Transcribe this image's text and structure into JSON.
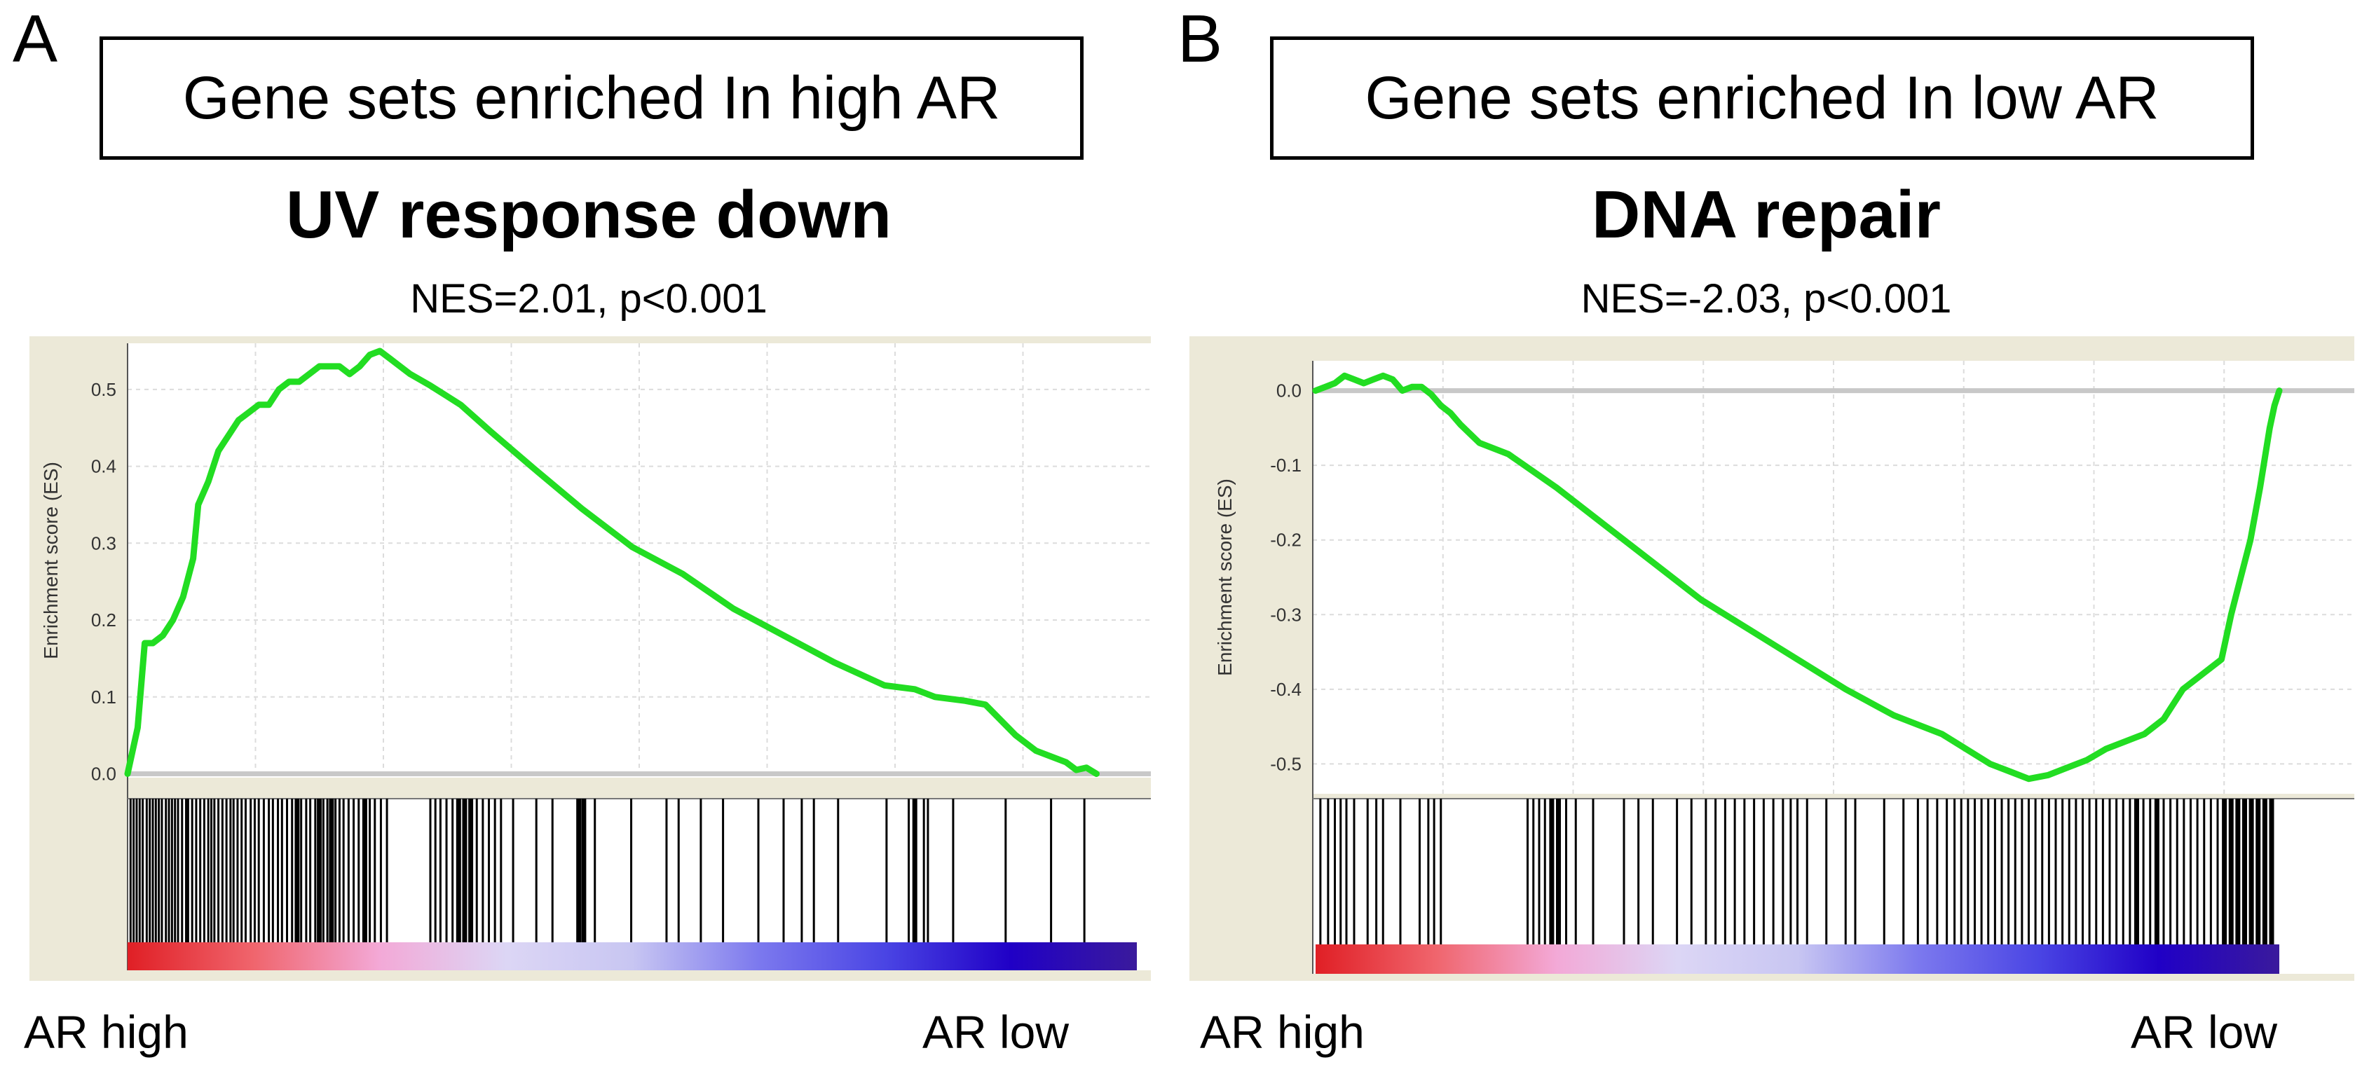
{
  "panels": [
    {
      "letter": "A",
      "caption": "Gene sets enriched In high AR",
      "x_left_label": "AR high",
      "x_right_label": "AR low"
    },
    {
      "letter": "B",
      "caption": "Gene sets enriched In low AR",
      "x_left_label": "AR high",
      "x_right_label": "AR low"
    }
  ],
  "chart_data": [
    {
      "type": "line",
      "title": "UV response  down",
      "subtitle": "NES=2.01,  p<0.001",
      "xlabel": "",
      "ylabel": "Enrichment score (ES)",
      "ylim": [
        -0.005,
        0.56
      ],
      "yticks": [
        0.0,
        0.1,
        0.2,
        0.3,
        0.4,
        0.5
      ],
      "ytick_labels": [
        "0.0",
        "0.1",
        "0.2",
        "0.3",
        "0.4",
        "0.5"
      ],
      "xlim": [
        0,
        100
      ],
      "x": [
        0,
        1,
        1.7,
        2.5,
        3.5,
        4.5,
        5.5,
        6.5,
        7,
        8,
        9,
        10,
        11,
        12,
        13,
        14,
        15,
        16,
        17,
        18,
        19,
        20,
        21,
        22,
        23,
        24,
        25,
        26,
        27,
        28,
        30,
        33,
        36,
        40,
        45,
        50,
        55,
        60,
        65,
        70,
        75,
        78,
        80,
        83,
        85,
        88,
        90,
        92,
        93,
        94,
        95,
        96
      ],
      "y": [
        0.0,
        0.06,
        0.17,
        0.17,
        0.18,
        0.2,
        0.23,
        0.28,
        0.35,
        0.38,
        0.42,
        0.44,
        0.46,
        0.47,
        0.48,
        0.48,
        0.5,
        0.51,
        0.51,
        0.52,
        0.53,
        0.53,
        0.53,
        0.52,
        0.53,
        0.545,
        0.55,
        0.54,
        0.53,
        0.52,
        0.505,
        0.48,
        0.445,
        0.4,
        0.345,
        0.295,
        0.26,
        0.215,
        0.18,
        0.145,
        0.115,
        0.11,
        0.1,
        0.095,
        0.09,
        0.05,
        0.03,
        0.02,
        0.015,
        0.005,
        0.008,
        0.0
      ],
      "hits": [
        0.3,
        0.6,
        0.9,
        1.2,
        1.5,
        1.9,
        2.2,
        2.5,
        2.8,
        3.1,
        3.4,
        3.8,
        4.1,
        4.4,
        4.7,
        5.0,
        5.4,
        5.8,
        6.0,
        6.4,
        6.8,
        7.2,
        7.6,
        8.0,
        8.3,
        8.6,
        9.0,
        9.4,
        9.8,
        10.2,
        10.5,
        10.9,
        11.3,
        11.7,
        12.2,
        12.6,
        13.0,
        13.5,
        14.0,
        14.4,
        14.9,
        15.3,
        15.8,
        16.3,
        16.8,
        17.2,
        17.7,
        18.1,
        18.6,
        19.0,
        19.4,
        19.8,
        20.2,
        20.6,
        21.0,
        21.4,
        21.9,
        22.4,
        22.9,
        23.5,
        24.0,
        24.5,
        25.1,
        25.7,
        30.0,
        30.5,
        31.0,
        31.6,
        32.2,
        32.8,
        33.4,
        34.0,
        34.6,
        35.2,
        35.8,
        36.4,
        37.0,
        38.2,
        40.5,
        42.1,
        44.7,
        45.2,
        46.3,
        49.9,
        53.4,
        54.6,
        56.8,
        59.0,
        62.5,
        65.0,
        66.8,
        68.0,
        70.4,
        75.2,
        77.4,
        78.0,
        78.9,
        79.3,
        81.8,
        87.0,
        91.5,
        94.8
      ],
      "hits_bold": [
        16.8,
        19.0,
        20.2,
        23.5,
        32.8,
        33.4,
        34.0,
        44.7,
        45.2,
        78.0
      ]
    },
    {
      "type": "line",
      "title": "DNA repair",
      "subtitle": "NES=-2.03,  p<0.001",
      "xlabel": "",
      "ylabel": "Enrichment score (ES)",
      "ylim": [
        -0.54,
        0.04
      ],
      "yticks": [
        0.0,
        -0.1,
        -0.2,
        -0.3,
        -0.4,
        -0.5
      ],
      "ytick_labels": [
        "0.0",
        "-0.1",
        "-0.2",
        "-0.3",
        "-0.4",
        "-0.5"
      ],
      "xlim": [
        0,
        100
      ],
      "x": [
        0,
        1,
        2,
        3,
        4,
        5,
        6,
        7,
        8,
        9,
        10,
        11,
        12,
        13,
        14,
        15,
        17,
        20,
        25,
        30,
        35,
        40,
        45,
        50,
        55,
        60,
        65,
        70,
        72,
        74,
        76,
        78,
        80,
        82,
        84,
        86,
        88,
        90,
        92,
        94,
        95,
        96,
        97,
        98,
        98.5,
        99,
        99.5,
        100
      ],
      "y": [
        0.0,
        0.005,
        0.01,
        0.02,
        0.015,
        0.01,
        0.015,
        0.02,
        0.015,
        0.0,
        0.005,
        0.005,
        -0.005,
        -0.02,
        -0.03,
        -0.045,
        -0.07,
        -0.085,
        -0.13,
        -0.18,
        -0.23,
        -0.28,
        -0.32,
        -0.36,
        -0.4,
        -0.435,
        -0.46,
        -0.5,
        -0.51,
        -0.52,
        -0.515,
        -0.505,
        -0.495,
        -0.48,
        -0.47,
        -0.46,
        -0.44,
        -0.4,
        -0.38,
        -0.36,
        -0.3,
        -0.25,
        -0.2,
        -0.13,
        -0.09,
        -0.05,
        -0.02,
        0.0
      ],
      "hits": [
        0.5,
        1.3,
        2.0,
        2.6,
        3.2,
        4.0,
        5.4,
        6.3,
        7.0,
        8.8,
        10.8,
        11.7,
        12.3,
        13.0,
        22.0,
        22.6,
        23.2,
        23.8,
        24.5,
        25.2,
        26.0,
        27.0,
        28.8,
        32.0,
        33.5,
        35.0,
        37.5,
        39.0,
        40.5,
        41.5,
        42.5,
        43.5,
        44.5,
        45.5,
        46.5,
        47.5,
        48.5,
        49.3,
        50.0,
        51.0,
        53.0,
        55.0,
        56.0,
        59.0,
        61.0,
        62.5,
        63.5,
        64.5,
        65.5,
        66.3,
        67.0,
        67.7,
        68.4,
        69.1,
        69.8,
        70.5,
        71.2,
        71.9,
        72.6,
        73.3,
        74.0,
        74.7,
        75.4,
        76.1,
        76.8,
        77.5,
        78.2,
        78.9,
        79.6,
        80.3,
        81.0,
        81.7,
        82.4,
        83.1,
        83.8,
        84.5,
        85.2,
        85.9,
        86.6,
        87.3,
        88.0,
        88.7,
        89.4,
        90.1,
        90.8,
        91.5,
        92.2,
        92.9,
        93.6,
        94.3,
        95.0,
        95.7,
        96.4,
        97.1,
        97.8,
        98.5,
        99.2
      ],
      "hits_bold": [
        24.5,
        25.2,
        85.2,
        87.3,
        94.3,
        95.0,
        95.7,
        96.4,
        97.1,
        97.8,
        98.5,
        99.2
      ]
    }
  ],
  "styles": {
    "curve_color": "#22dd22",
    "hit_color": "#000000",
    "frame_bg": "#ece9d8",
    "grid_color": "#dcdcdc",
    "zero_line_color": "#c8c8c8",
    "ranked_gradient": [
      "#e01f25",
      "#f0656d",
      "#f3a9d7",
      "#dcd6f5",
      "#c8c6f2",
      "#7c79ee",
      "#4a45e4",
      "#2000c6",
      "#3a1a9c"
    ]
  }
}
